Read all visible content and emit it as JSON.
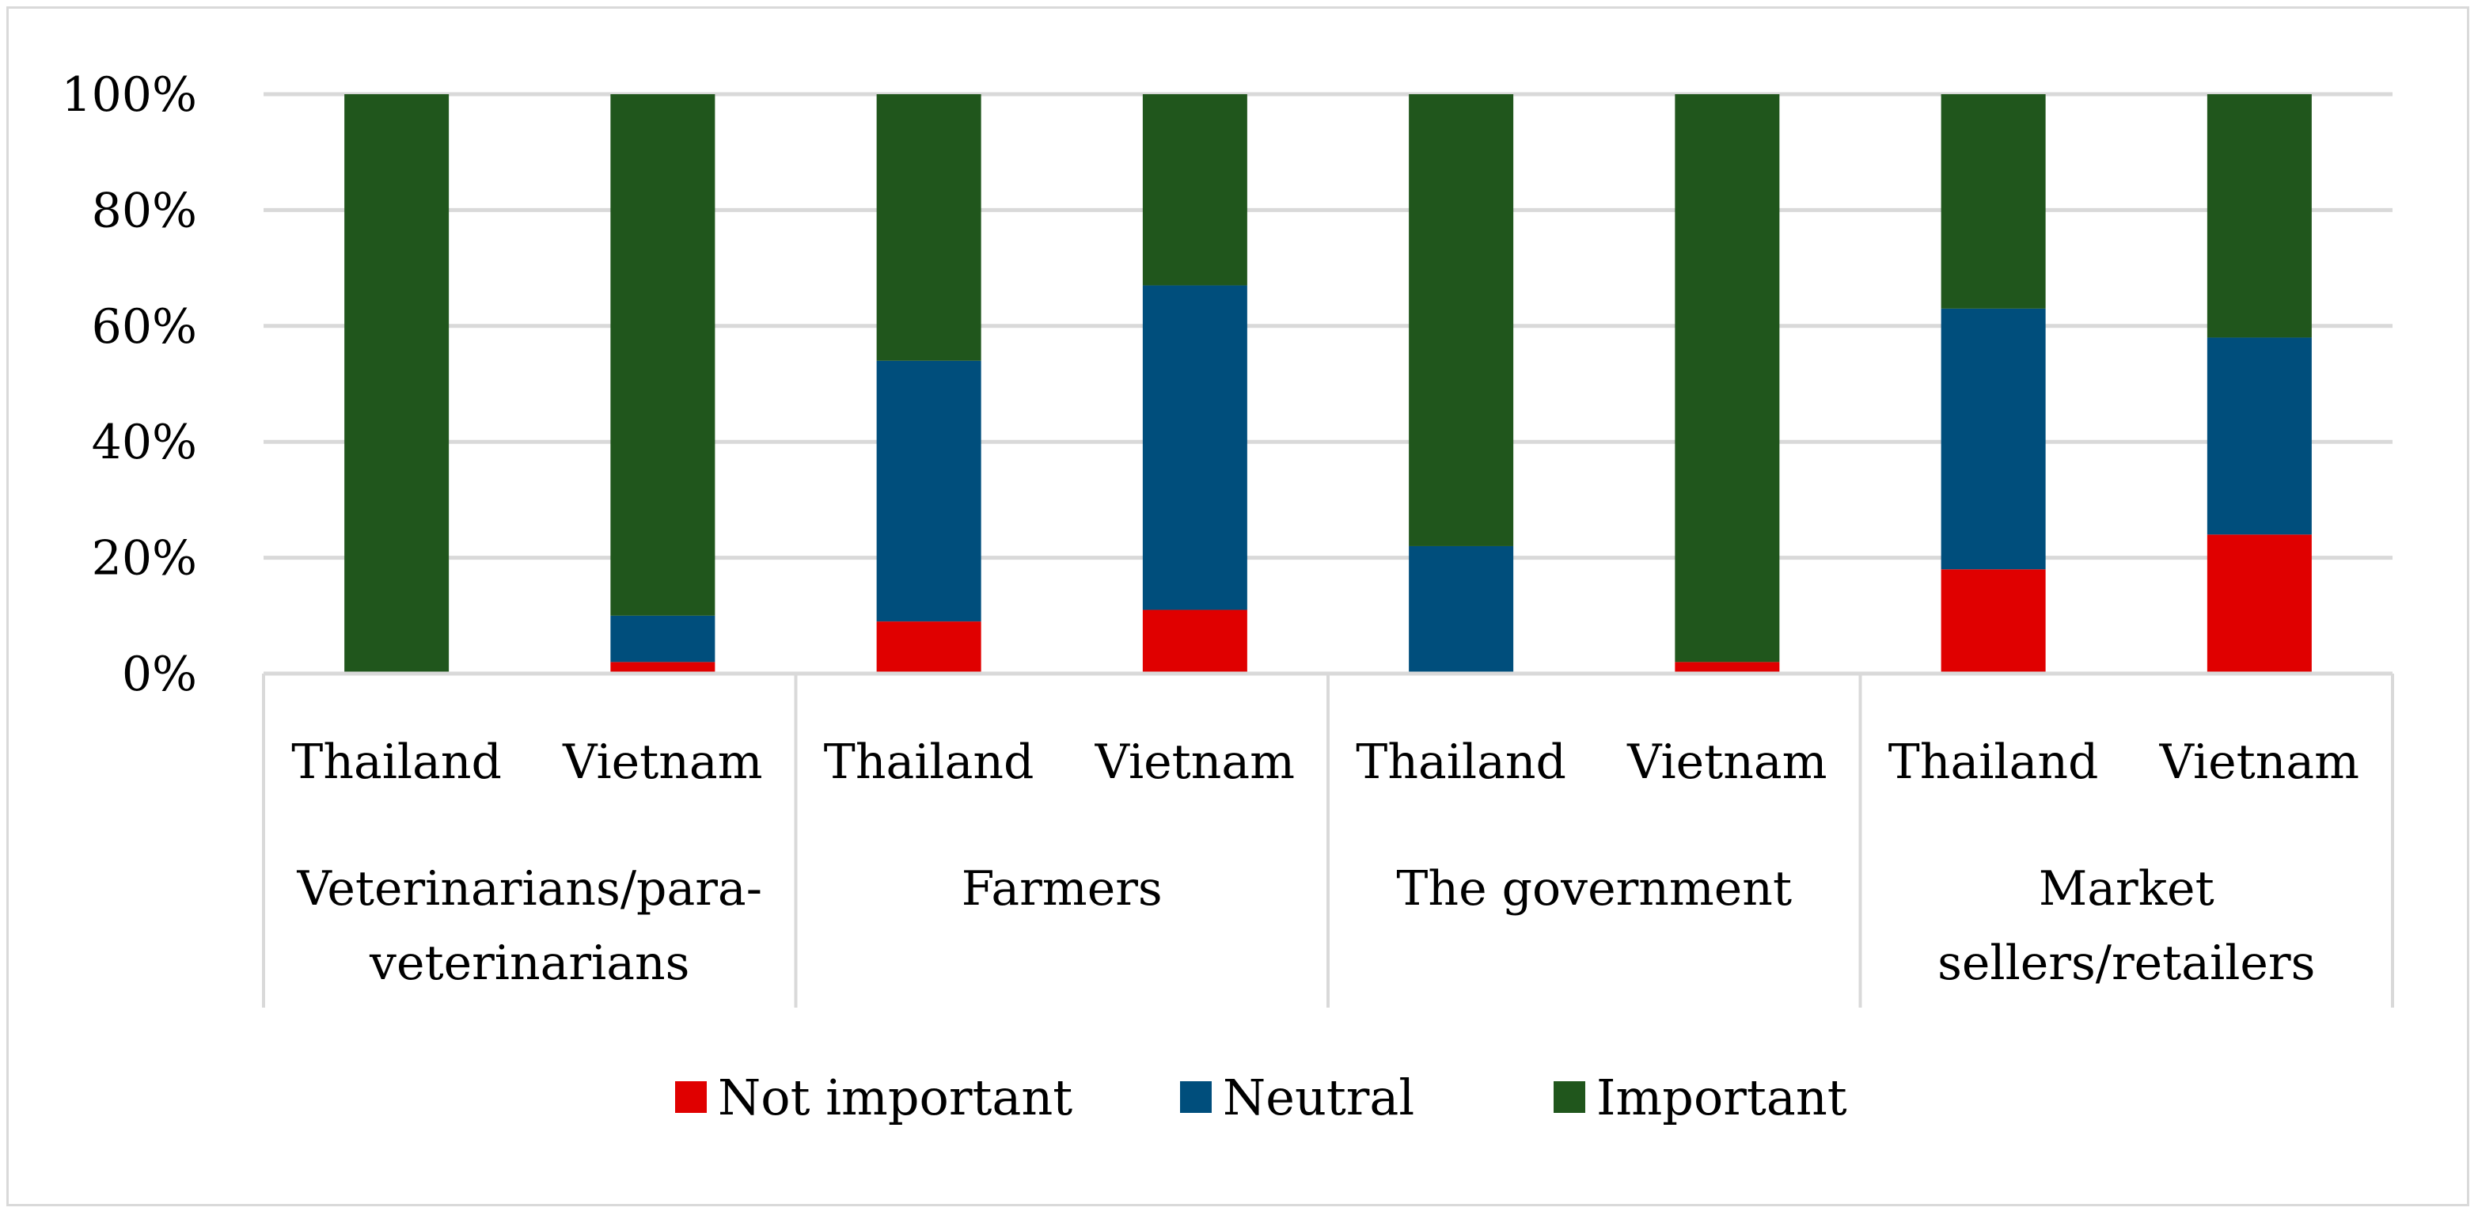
{
  "colors": {
    "not_important": "#e00000",
    "neutral": "#004e7c",
    "important": "#20561c",
    "grid": "#d9d9d9",
    "frame": "#d9d9d9"
  },
  "chart_data": {
    "type": "bar",
    "stacked": true,
    "percent_stacked": true,
    "title": "",
    "xlabel": "",
    "ylabel": "",
    "ylim": [
      0,
      100
    ],
    "yticks": [
      "0%",
      "20%",
      "40%",
      "60%",
      "80%",
      "100%"
    ],
    "grid": true,
    "legend_position": "bottom",
    "groups": [
      {
        "label": "Veterinarians/para-veterinarians",
        "lines": [
          "Veterinarians/para-",
          "veterinarians"
        ]
      },
      {
        "label": "Farmers",
        "lines": [
          "Farmers"
        ]
      },
      {
        "label": "The government",
        "lines": [
          "The government"
        ]
      },
      {
        "label": "Market sellers/retailers",
        "lines": [
          "Market",
          "sellers/retailers"
        ]
      }
    ],
    "categories": [
      "Thailand",
      "Vietnam",
      "Thailand",
      "Vietnam",
      "Thailand",
      "Vietnam",
      "Thailand",
      "Vietnam"
    ],
    "series": [
      {
        "name": "Not important",
        "color_key": "not_important",
        "values": [
          0,
          2,
          9,
          11,
          0,
          2,
          18,
          24
        ]
      },
      {
        "name": "Neutral",
        "color_key": "neutral",
        "values": [
          0,
          8,
          45,
          56,
          22,
          0,
          45,
          34
        ]
      },
      {
        "name": "Important",
        "color_key": "important",
        "values": [
          100,
          90,
          46,
          33,
          78,
          98,
          37,
          42
        ]
      }
    ]
  }
}
